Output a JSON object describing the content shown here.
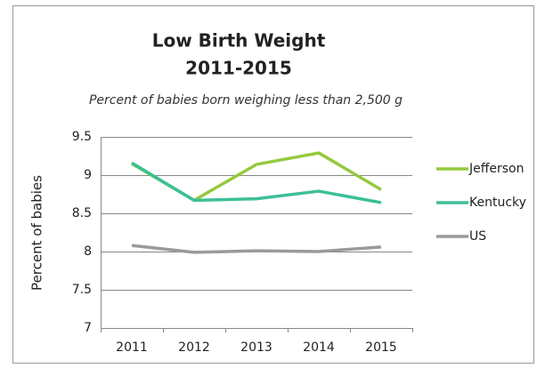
{
  "chart_data": {
    "type": "line",
    "title": [
      "Low Birth Weight",
      "2011-2015"
    ],
    "subtitle": "Percent of babies born weighing less than 2,500 g",
    "y_label": "Percent of babies",
    "categories": [
      "2011",
      "2012",
      "2013",
      "2014",
      "2015"
    ],
    "series": [
      {
        "name": "Jefferson",
        "color": "#95c93d",
        "values": [
          9.15,
          8.67,
          9.14,
          9.29,
          8.81
        ]
      },
      {
        "name": "Kentucky",
        "color": "#3cbf98",
        "values": [
          9.16,
          8.67,
          8.69,
          8.79,
          8.64
        ]
      },
      {
        "name": "US",
        "color": "#9a9a9a",
        "values": [
          8.08,
          7.99,
          8.01,
          8.0,
          8.06
        ]
      }
    ],
    "ylim": [
      7,
      9.5
    ],
    "yticks": [
      7,
      7.5,
      8,
      8.5,
      9,
      9.5
    ],
    "grid": true,
    "legend": "right"
  }
}
